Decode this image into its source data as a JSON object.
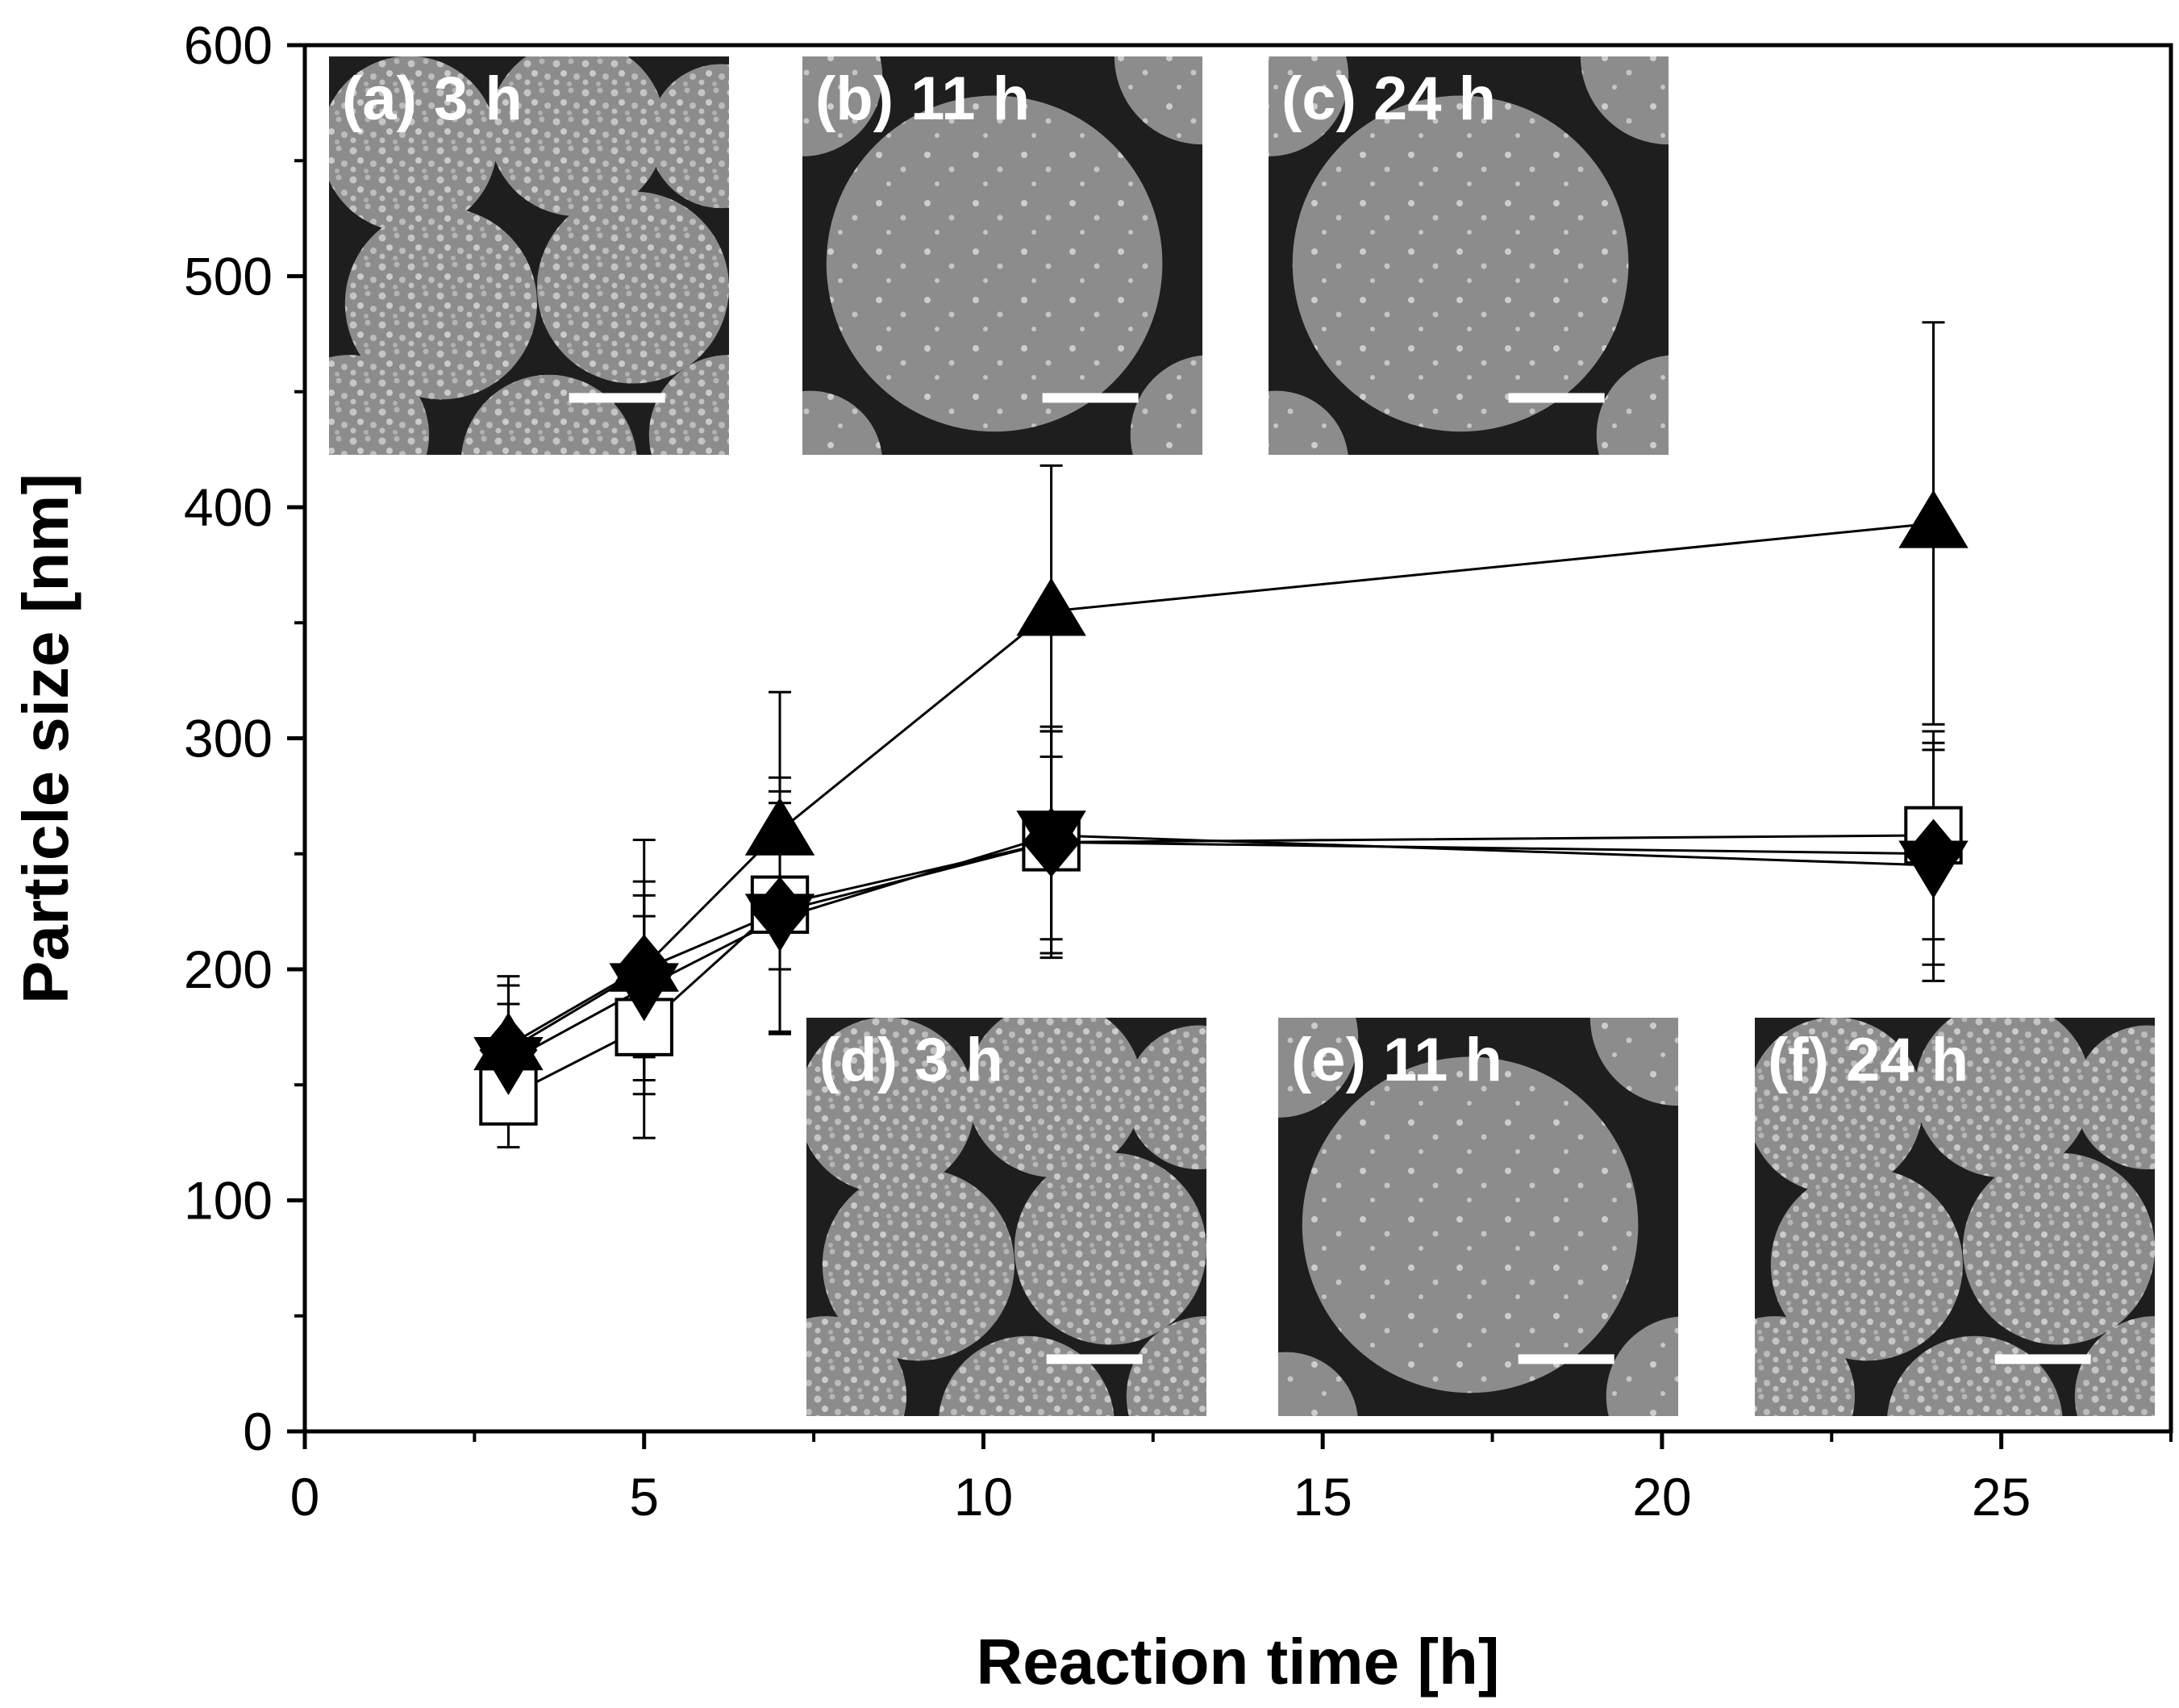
{
  "chart_data": {
    "type": "scatter",
    "xlabel": "Reaction time [h]",
    "ylabel": "Particle size [nm]",
    "xlim": [
      0,
      27.5
    ],
    "ylim": [
      0,
      600
    ],
    "x_ticks": [
      0,
      5,
      10,
      15,
      20,
      25
    ],
    "y_ticks": [
      0,
      100,
      200,
      300,
      400,
      500,
      600
    ],
    "x_minor_step": 2.5,
    "y_minor_step": 50,
    "grid": false,
    "legend": "none",
    "series": [
      {
        "marker": "filled-triangle-up",
        "x": [
          3,
          5,
          7,
          11,
          24
        ],
        "y": [
          167,
          201,
          260,
          355,
          393
        ],
        "err": [
          30,
          55,
          60,
          63,
          87
        ]
      },
      {
        "marker": "open-square",
        "x": [
          3,
          5,
          7,
          11,
          24
        ],
        "y": [
          145,
          175,
          228,
          255,
          258
        ],
        "err": [
          22,
          48,
          55,
          50,
          45
        ]
      },
      {
        "marker": "filled-triangle-down",
        "x": [
          3,
          5,
          7,
          11,
          24
        ],
        "y": [
          160,
          192,
          222,
          258,
          245
        ],
        "err": [
          25,
          40,
          50,
          45,
          50
        ]
      },
      {
        "marker": "filled-diamond",
        "x": [
          3,
          5,
          7,
          11,
          24
        ],
        "y": [
          165,
          200,
          225,
          255,
          250
        ],
        "err": [
          28,
          38,
          52,
          48,
          48
        ]
      }
    ],
    "insets": [
      {
        "id": "a",
        "label": "(a) 3 h",
        "texture": "dense"
      },
      {
        "id": "b",
        "label": "(b) 11 h",
        "texture": "sparse"
      },
      {
        "id": "c",
        "label": "(c) 24 h",
        "texture": "sparse"
      },
      {
        "id": "d",
        "label": "(d) 3 h",
        "texture": "dense"
      },
      {
        "id": "e",
        "label": "(e) 11 h",
        "texture": "sparse"
      },
      {
        "id": "f",
        "label": "(f) 24 h",
        "texture": "dense"
      }
    ],
    "colors": {
      "axis": "#000000",
      "marker": "#000000",
      "open_fill": "#ffffff",
      "inset_bg": "#5a5a5a",
      "inset_particle": "#8c8c8c",
      "inset_dark": "#1e1e1e",
      "inset_speck": "#d2d2d2"
    }
  }
}
